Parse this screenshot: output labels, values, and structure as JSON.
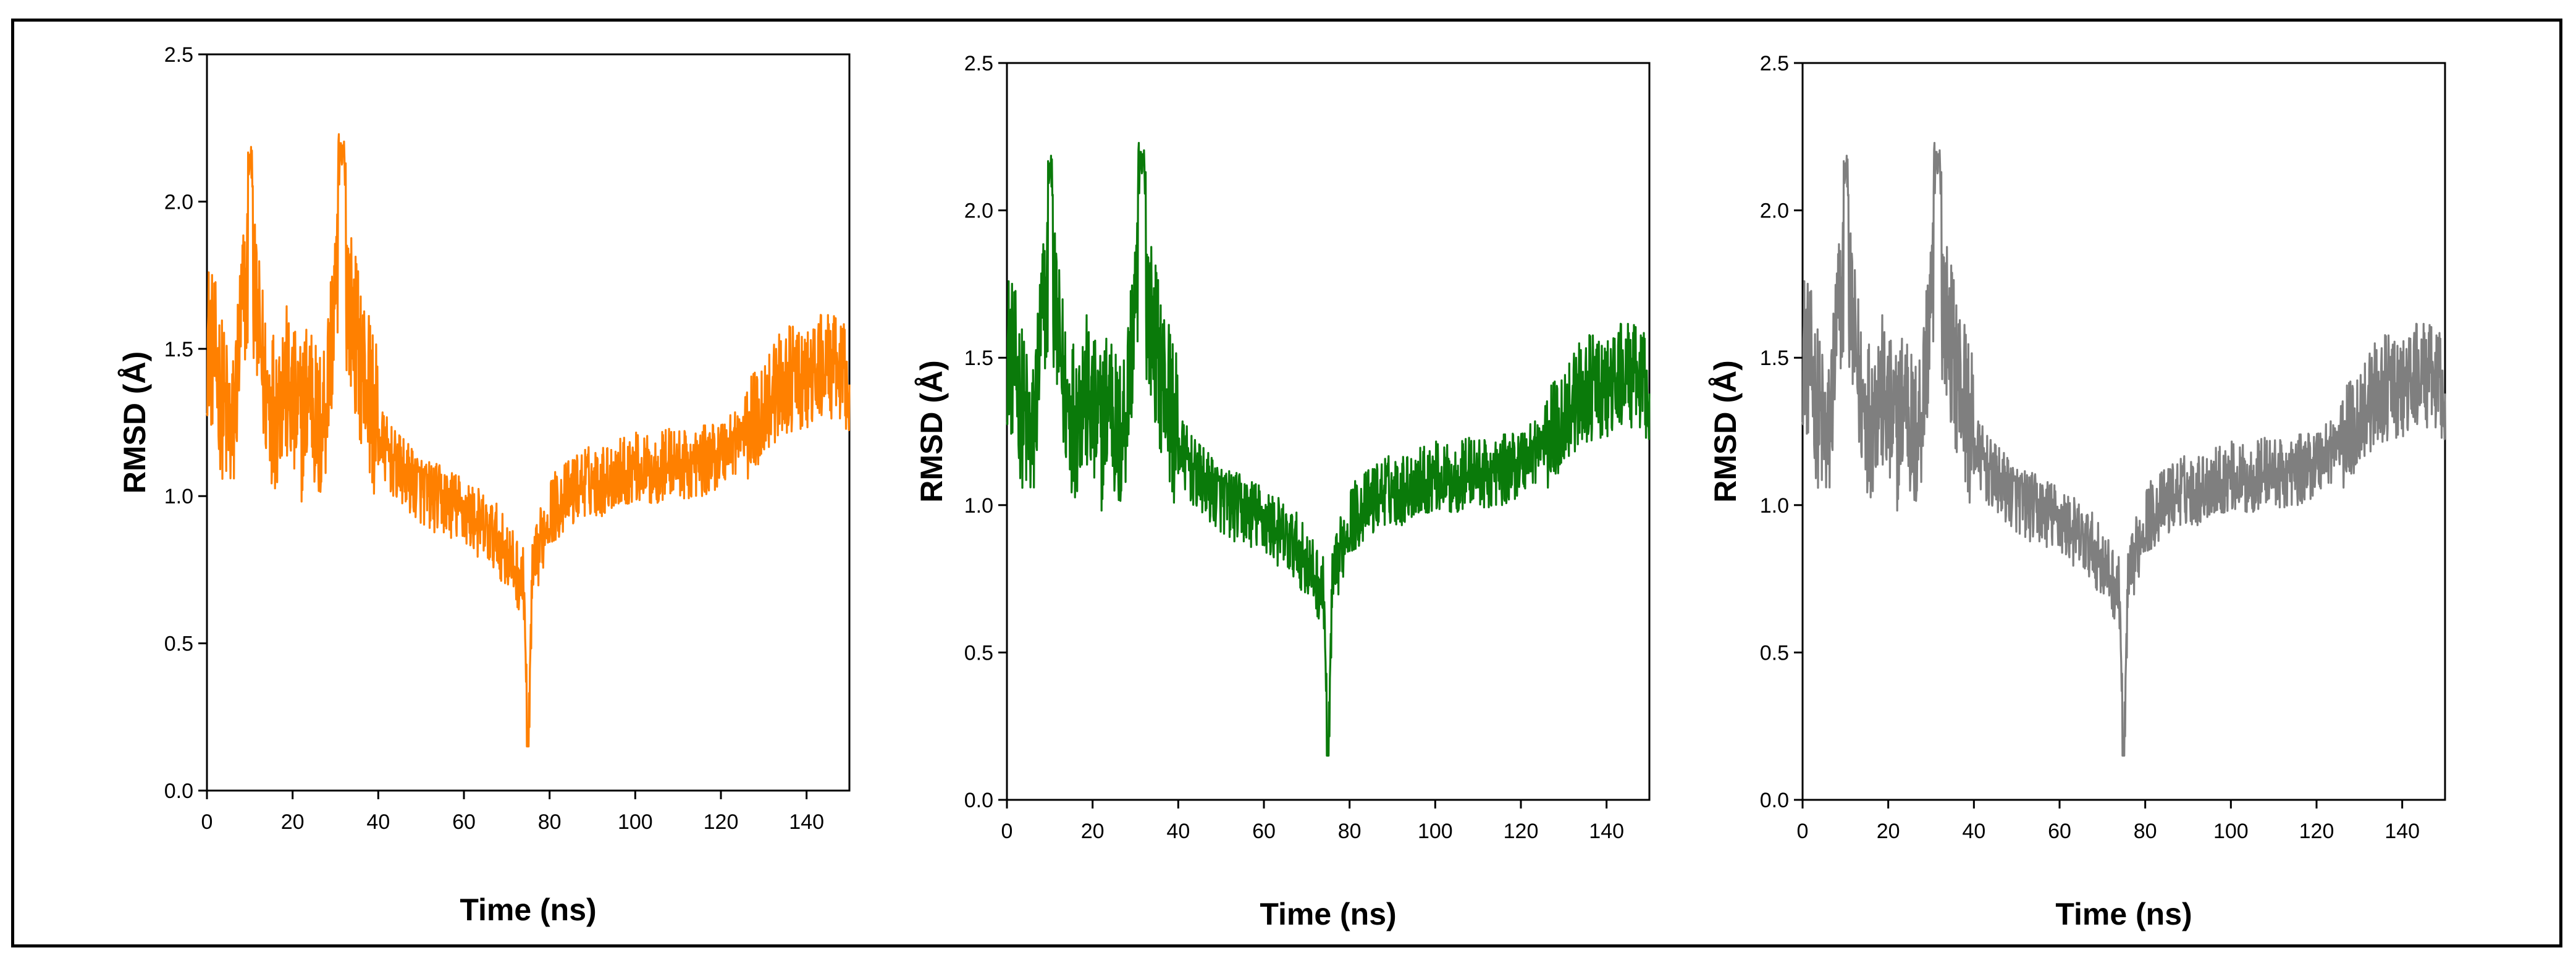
{
  "chart_data": [
    {
      "type": "line",
      "panel": "left",
      "color": "#ff8000",
      "xlabel": "Time (ns)",
      "ylabel": "RMSD (Å)",
      "xlim": [
        0,
        150
      ],
      "ylim": [
        0,
        2.5
      ],
      "xticks": [
        "0",
        "20",
        "40",
        "60",
        "80",
        "100",
        "120",
        "140"
      ],
      "yticks": [
        "0.0",
        "0.5",
        "1.0",
        "1.5",
        "2.0",
        "2.5"
      ]
    },
    {
      "type": "line",
      "panel": "middle",
      "color": "#0a7a0a",
      "xlabel": "Time (ns)",
      "ylabel": "RMSD (Å)",
      "xlim": [
        0,
        150
      ],
      "ylim": [
        0,
        2.5
      ],
      "xticks": [
        "0",
        "20",
        "40",
        "60",
        "80",
        "100",
        "120",
        "140"
      ],
      "yticks": [
        "0.0",
        "0.5",
        "1.0",
        "1.5",
        "2.0",
        "2.5"
      ]
    },
    {
      "type": "line",
      "panel": "right",
      "color": "#7f7f7f",
      "xlabel": "Time (ns)",
      "ylabel": "RMSD (Å)",
      "xlim": [
        0,
        150
      ],
      "ylim": [
        0,
        2.5
      ],
      "xticks": [
        "0",
        "20",
        "40",
        "60",
        "80",
        "100",
        "120",
        "140"
      ],
      "yticks": [
        "0.0",
        "0.5",
        "1.0",
        "1.5",
        "2.0",
        "2.5"
      ]
    }
  ],
  "series_profile": {
    "x": [
      0,
      2,
      4,
      6,
      8,
      10,
      12,
      14,
      16,
      18,
      20,
      22,
      24,
      26,
      28,
      30,
      32,
      34,
      36,
      38,
      40,
      44,
      48,
      52,
      56,
      60,
      64,
      68,
      72,
      74,
      75,
      76,
      78,
      80,
      84,
      88,
      92,
      96,
      100,
      104,
      108,
      112,
      116,
      120,
      124,
      128,
      132,
      136,
      140,
      144,
      148,
      150
    ],
    "y": [
      1.55,
      1.45,
      1.3,
      1.2,
      1.6,
      1.8,
      1.55,
      1.35,
      1.3,
      1.4,
      1.3,
      1.25,
      1.4,
      1.2,
      1.35,
      1.7,
      1.75,
      1.6,
      1.45,
      1.35,
      1.2,
      1.1,
      1.05,
      1.0,
      0.98,
      0.95,
      0.9,
      0.85,
      0.75,
      0.7,
      0.15,
      0.72,
      0.85,
      0.95,
      1.0,
      1.05,
      1.05,
      1.08,
      1.1,
      1.08,
      1.12,
      1.1,
      1.12,
      1.15,
      1.2,
      1.25,
      1.35,
      1.4,
      1.38,
      1.45,
      1.42,
      1.4
    ]
  }
}
